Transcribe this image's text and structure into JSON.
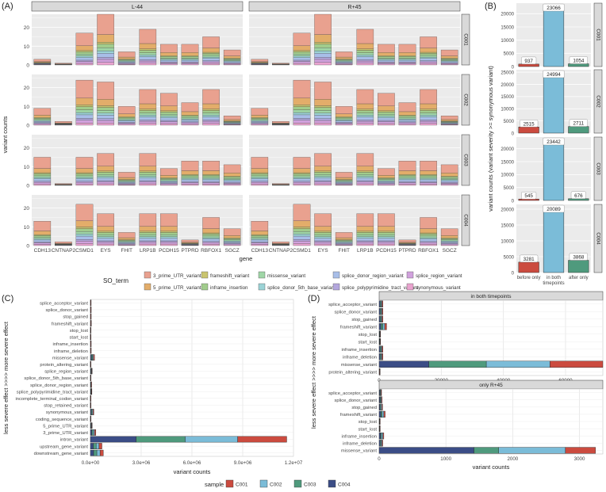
{
  "chart_data": [
    {
      "panel": "(A)",
      "type": "bar",
      "stacked": true,
      "xlabel": "gene",
      "ylabel": "variant counts",
      "ylim": [
        0,
        27
      ],
      "yticks": [
        0,
        10,
        20
      ],
      "columns": [
        "L-44",
        "R+45"
      ],
      "rows": [
        "C001",
        "C002",
        "C003",
        "C004"
      ],
      "categories": [
        "CDH13",
        "CNTNAP2",
        "CSMD1",
        "EYS",
        "FHIT",
        "LRP1B",
        "PCDH15",
        "PTPRD",
        "RBFOX1",
        "SGCZ"
      ],
      "totals_by_row": {
        "C001": [
          3,
          1,
          17,
          27,
          7,
          19,
          11,
          11,
          15,
          8
        ],
        "C002": [
          9,
          2,
          24,
          23,
          10,
          19,
          17,
          12,
          19,
          5
        ],
        "C003": [
          15,
          1,
          15,
          17,
          7,
          17,
          9,
          13,
          13,
          11
        ],
        "C004": [
          13,
          2,
          22,
          17,
          7,
          17,
          17,
          3,
          15,
          9
        ]
      },
      "legend_title": "SO_term",
      "legend_position": "bottom",
      "legend": [
        {
          "name": "3_prime_UTR_variant",
          "color": "#E9A18F"
        },
        {
          "name": "5_prime_UTR_variant",
          "color": "#E3AD6A"
        },
        {
          "name": "frameshift_variant",
          "color": "#C9C46E"
        },
        {
          "name": "inframe_insertion",
          "color": "#A1CC8C"
        },
        {
          "name": "missense_variant",
          "color": "#9FD6A6"
        },
        {
          "name": "splice_donor_5th_base_variant",
          "color": "#9BD3D6"
        },
        {
          "name": "splice_donor_region_variant",
          "color": "#A8BEE8"
        },
        {
          "name": "splice_polypyrimidine_tract_variant",
          "color": "#B3A6DD"
        },
        {
          "name": "splice_region_variant",
          "color": "#D1A1DD"
        },
        {
          "name": "synonymous_variant",
          "color": "#E9A3CF"
        }
      ]
    },
    {
      "panel": "(B)",
      "type": "bar",
      "xlabel": "",
      "ylabel": "variant counts (variant severity >= synonymous variant)",
      "categories": [
        "before only",
        "in both timepoints",
        "after only"
      ],
      "series": [
        {
          "name": "C001",
          "values": [
            937,
            23066,
            1054
          ],
          "yticks": [
            0,
            5000,
            10000,
            15000,
            20000
          ],
          "ylim": [
            0,
            24000
          ]
        },
        {
          "name": "C002",
          "values": [
            2515,
            24994,
            2711
          ],
          "yticks": [
            0,
            5000,
            10000,
            15000,
            20000,
            25000
          ],
          "ylim": [
            0,
            26000
          ]
        },
        {
          "name": "C003",
          "values": [
            545,
            23442,
            676
          ],
          "yticks": [
            0,
            5000,
            10000,
            15000,
            20000
          ],
          "ylim": [
            0,
            24500
          ]
        },
        {
          "name": "C004",
          "values": [
            3281,
            20089,
            3868
          ],
          "yticks": [
            0,
            5000,
            10000,
            15000,
            20000
          ],
          "ylim": [
            0,
            21500
          ]
        }
      ],
      "colors": [
        "#CB4B3F",
        "#7BBCD8",
        "#4F9A7D"
      ]
    },
    {
      "panel": "(C)",
      "type": "bar",
      "orientation": "horizontal",
      "stacked": true,
      "xlabel": "variant counts",
      "ylabel": "less severe effect >>>> more severe effect",
      "xticks": [
        "0.0e+00",
        "3.0e+06",
        "6.0e+06",
        "9.0e+06",
        "1.2e+07"
      ],
      "xlim": [
        0,
        12000000
      ],
      "categories": [
        "splice_acceptor_variant",
        "splice_donor_variant",
        "stop_gained",
        "frameshift_variant",
        "stop_lost",
        "start_lost",
        "inframe_insertion",
        "inframe_deletion",
        "missense_variant",
        "protein_altering_variant",
        "splice_region_variant",
        "splice_donor_5th_base_variant",
        "splice_donor_region_variant",
        "splice_polypyrimidine_tract_variant",
        "incomplete_terminal_codon_variant",
        "stop_retained_variant",
        "synonymous_variant",
        "coding_sequence_variant",
        "5_prime_UTR_variant",
        "3_prime_UTR_variant",
        "intron_variant",
        "upstream_gene_variant",
        "downstream_gene_variant"
      ],
      "series": [
        {
          "name": "C004",
          "values": [
            5000,
            6000,
            6000,
            8000,
            3000,
            2000,
            6000,
            6000,
            60000,
            2000,
            25000,
            3000,
            15000,
            20000,
            1000,
            2000,
            50000,
            3000,
            25000,
            80000,
            2700000,
            170000,
            190000
          ]
        },
        {
          "name": "C003",
          "values": [
            5000,
            6000,
            6000,
            8000,
            3000,
            2000,
            6000,
            6000,
            60000,
            2000,
            25000,
            3000,
            15000,
            20000,
            1000,
            2000,
            50000,
            3000,
            25000,
            80000,
            2900000,
            170000,
            190000
          ]
        },
        {
          "name": "C002",
          "values": [
            5000,
            6000,
            6000,
            8000,
            3000,
            2000,
            6000,
            6000,
            60000,
            2000,
            25000,
            3000,
            15000,
            20000,
            1000,
            2000,
            50000,
            3000,
            25000,
            80000,
            3100000,
            170000,
            190000
          ]
        },
        {
          "name": "C001",
          "values": [
            5000,
            6000,
            6000,
            8000,
            3000,
            2000,
            6000,
            6000,
            60000,
            2000,
            25000,
            3000,
            15000,
            20000,
            1000,
            2000,
            50000,
            3000,
            25000,
            80000,
            2900000,
            170000,
            190000
          ]
        }
      ]
    },
    {
      "panel": "(D)",
      "type": "bar",
      "orientation": "horizontal",
      "stacked": true,
      "xlabel": "variant counts",
      "ylabel": "less severe effect >>>> more severe effect",
      "facets": [
        {
          "title": "in both timepoints",
          "xticks": [
            0,
            20000,
            40000,
            60000
          ],
          "xlim": [
            0,
            72000
          ],
          "categories": [
            "splice_acceptor_variant",
            "splice_donor_variant",
            "stop_gained",
            "frameshift_variant",
            "stop_lost",
            "start_lost",
            "inframe_insertion",
            "inframe_deletion",
            "missense_variant",
            "protein_altering_variant"
          ],
          "series": [
            {
              "name": "C004",
              "values": [
                300,
                300,
                300,
                600,
                100,
                100,
                300,
                300,
                16000,
                50
              ]
            },
            {
              "name": "C003",
              "values": [
                300,
                300,
                300,
                600,
                100,
                100,
                300,
                300,
                18500,
                50
              ]
            },
            {
              "name": "C002",
              "values": [
                300,
                300,
                300,
                600,
                100,
                100,
                300,
                300,
                20500,
                50
              ]
            },
            {
              "name": "C001",
              "values": [
                300,
                300,
                300,
                600,
                100,
                100,
                300,
                300,
                17000,
                50
              ]
            }
          ]
        },
        {
          "title": "only R+45",
          "xticks": [
            0,
            1000,
            2000,
            3000
          ],
          "xlim": [
            0,
            3350
          ],
          "categories": [
            "splice_acceptor_variant",
            "splice_donor_variant",
            "stop_gained",
            "frameshift_variant",
            "stop_lost",
            "start_lost",
            "inframe_insertion",
            "inframe_deletion",
            "missense_variant"
          ],
          "series": [
            {
              "name": "C004",
              "values": [
                10,
                12,
                12,
                25,
                3,
                3,
                20,
                15,
                1420
              ]
            },
            {
              "name": "C003",
              "values": [
                8,
                10,
                12,
                20,
                3,
                3,
                15,
                12,
                370
              ]
            },
            {
              "name": "C002",
              "values": [
                10,
                12,
                15,
                25,
                3,
                3,
                20,
                15,
                1000
              ]
            },
            {
              "name": "C001",
              "values": [
                8,
                10,
                12,
                20,
                3,
                3,
                15,
                12,
                450
              ]
            }
          ]
        }
      ]
    }
  ],
  "sample_legend": {
    "title": "sample",
    "items": [
      {
        "name": "C001",
        "color": "#CB4B3F"
      },
      {
        "name": "C002",
        "color": "#7BBCD8"
      },
      {
        "name": "C003",
        "color": "#4F9A7D"
      },
      {
        "name": "C004",
        "color": "#3B4D86"
      }
    ]
  }
}
